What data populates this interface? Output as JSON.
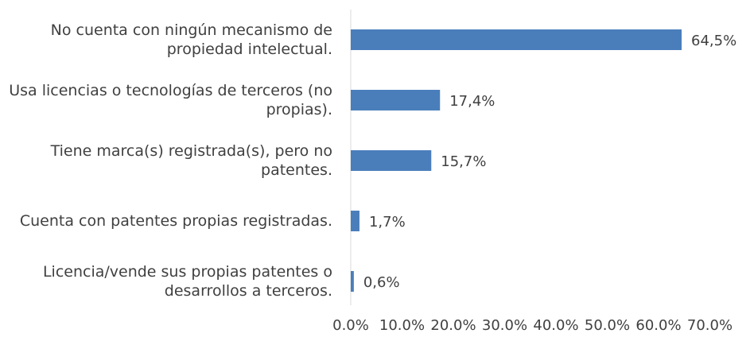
{
  "chart_data": {
    "type": "bar",
    "orientation": "horizontal",
    "categories": [
      "No cuenta con ningún mecanismo de propiedad intelectual.",
      "Usa licencias o tecnologías de terceros (no propias).",
      "Tiene marca(s) registrada(s), pero no patentes.",
      "Cuenta con patentes propias registradas.",
      "Licencia/vende sus propias patentes o desarrollos a terceros."
    ],
    "values": [
      64.5,
      17.4,
      15.7,
      1.7,
      0.6
    ],
    "value_labels": [
      "64,5%",
      "17,4%",
      "15,7%",
      "1,7%",
      "0,6%"
    ],
    "color": "#4a7ebb",
    "xlim": [
      0,
      70
    ],
    "xticks": [
      {
        "value": 0,
        "label": "0.0%"
      },
      {
        "value": 10,
        "label": "10.0%"
      },
      {
        "value": 20,
        "label": "20.0%"
      },
      {
        "value": 30,
        "label": "30.0%"
      },
      {
        "value": 40,
        "label": "40.0%"
      },
      {
        "value": 50,
        "label": "50.0%"
      },
      {
        "value": 60,
        "label": "60.0%"
      },
      {
        "value": 70,
        "label": "70.0%"
      }
    ],
    "grid": false
  }
}
